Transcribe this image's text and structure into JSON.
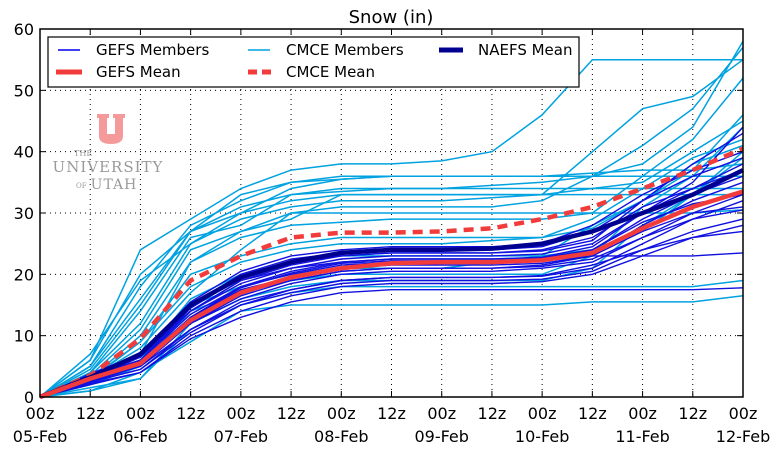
{
  "chart_data": {
    "type": "line",
    "title": "Snow (in)",
    "xlabel": "",
    "ylabel": "",
    "ylim": [
      0,
      60
    ],
    "yticks": [
      0,
      10,
      20,
      30,
      40,
      50,
      60
    ],
    "x_unit": "hours since 00z 05-Feb",
    "x": [
      0,
      12,
      24,
      36,
      48,
      60,
      72,
      84,
      96,
      108,
      120,
      132,
      144,
      156,
      168
    ],
    "xlim": [
      0,
      168
    ],
    "xtick_hours": [
      "00z",
      "12z",
      "00z",
      "12z",
      "00z",
      "12z",
      "00z",
      "12z",
      "00z",
      "12z",
      "00z",
      "12z",
      "00z",
      "12z",
      "00z"
    ],
    "xtick_dates": [
      "05-Feb",
      "",
      "06-Feb",
      "",
      "07-Feb",
      "",
      "08-Feb",
      "",
      "09-Feb",
      "",
      "10-Feb",
      "",
      "11-Feb",
      "",
      "12-Feb"
    ],
    "grid": true,
    "legend_position": "top-left",
    "legend": [
      {
        "label": "GEFS Members",
        "color": "#0000ee",
        "style": "solid-thin"
      },
      {
        "label": "GEFS Mean",
        "color": "#f23c3c",
        "style": "solid-thick"
      },
      {
        "label": "CMCE Members",
        "color": "#00a2e0",
        "style": "solid-thin"
      },
      {
        "label": "CMCE Mean",
        "color": "#f23c3c",
        "style": "dashed-thick"
      },
      {
        "label": "NAEFS Mean",
        "color": "#000090",
        "style": "solid-thick"
      }
    ],
    "series": [
      {
        "name": "GEFS Mean",
        "group": "gefs_mean",
        "values": [
          0,
          3,
          5.5,
          12.5,
          17,
          19.5,
          21,
          21.8,
          22,
          22,
          22.3,
          23.5,
          27.5,
          31,
          33.5
        ]
      },
      {
        "name": "CMCE Mean",
        "group": "cmce_mean",
        "values": [
          0,
          3.5,
          9.5,
          19,
          23,
          26,
          26.8,
          26.8,
          27,
          27.5,
          29,
          31,
          34,
          37,
          40.5
        ]
      },
      {
        "name": "NAEFS Mean",
        "group": "naefs_mean",
        "values": [
          0,
          3.2,
          7,
          15,
          19.5,
          22,
          23.5,
          24,
          24,
          24.2,
          25,
          27,
          30,
          33,
          37
        ]
      }
    ],
    "members": {
      "gefs": [
        [
          0,
          3,
          5,
          13,
          18,
          20.5,
          22,
          22.5,
          22.5,
          22.5,
          22.7,
          24,
          29,
          33,
          36
        ],
        [
          0,
          3.5,
          6,
          14,
          19,
          21,
          22.5,
          23,
          23,
          23,
          23.3,
          25,
          30,
          34,
          38
        ],
        [
          0,
          2.5,
          5,
          12,
          16,
          18.5,
          20,
          20.5,
          20.5,
          20.5,
          21,
          22,
          26,
          30,
          33
        ],
        [
          0,
          3,
          6.5,
          15,
          20,
          22.5,
          23.5,
          24,
          24,
          24,
          24.5,
          27,
          32,
          36,
          39
        ],
        [
          0,
          2.8,
          5,
          11,
          15,
          17,
          18.5,
          19,
          19,
          19,
          19.2,
          20.5,
          24,
          27,
          29
        ],
        [
          0,
          3.2,
          5.5,
          13,
          17.5,
          19.5,
          21,
          21.5,
          21.5,
          21.5,
          21.8,
          23,
          27,
          30,
          31
        ],
        [
          0,
          2,
          4,
          10,
          14,
          16.5,
          18,
          18.5,
          18.5,
          18.5,
          18.8,
          20,
          23,
          26,
          28
        ],
        [
          0,
          3.5,
          7,
          15.5,
          20.5,
          23,
          24,
          24.5,
          24.5,
          24.5,
          25,
          28,
          33,
          37,
          40
        ],
        [
          0,
          3,
          5.5,
          12.5,
          17,
          19,
          20.5,
          21,
          21,
          21,
          21.5,
          23,
          28,
          32,
          35
        ],
        [
          0,
          2.5,
          4.5,
          11,
          15.5,
          17.5,
          19,
          19.5,
          19.5,
          19.5,
          19.7,
          21,
          25,
          29,
          32
        ],
        [
          0,
          3.8,
          7,
          14,
          18.5,
          21,
          22,
          22.5,
          22.5,
          22.5,
          22.8,
          24.5,
          30,
          35,
          44
        ],
        [
          0,
          2.2,
          4,
          9.5,
          13,
          15.5,
          17,
          17.5,
          17.5,
          17.5,
          17.5,
          17.5,
          17.5,
          17.5,
          17.8
        ],
        [
          0,
          3,
          6,
          13.5,
          18,
          20,
          21.5,
          22,
          22,
          22,
          22.2,
          23,
          23,
          23,
          23.5
        ],
        [
          0,
          3.3,
          6,
          14.5,
          19.5,
          22,
          23,
          23.5,
          23.5,
          23.5,
          24,
          26,
          31,
          34,
          37
        ],
        [
          0,
          2.7,
          5,
          12,
          16.5,
          19,
          20.5,
          21,
          21,
          21,
          21.3,
          22.5,
          26,
          29,
          30.5
        ],
        [
          0,
          3.6,
          6.5,
          14,
          19,
          21.5,
          23,
          23.5,
          23.5,
          23.5,
          23.8,
          25.5,
          32,
          38,
          43
        ],
        [
          0,
          2.4,
          4.5,
          10.5,
          15,
          17.5,
          19,
          19.5,
          19.5,
          19.5,
          19.8,
          21.5,
          24,
          26,
          27
        ],
        [
          0,
          3.1,
          5.8,
          13,
          17.8,
          20.2,
          21.8,
          22.2,
          22.2,
          22.2,
          22.5,
          24,
          28.5,
          31.5,
          33
        ]
      ],
      "cmce": [
        [
          0,
          7,
          19,
          25,
          30,
          34,
          35.5,
          36,
          36,
          36,
          36,
          36,
          36,
          36,
          36
        ],
        [
          0,
          4,
          12,
          25,
          29,
          31,
          32,
          32,
          32,
          32.5,
          33,
          40,
          47,
          49,
          55
        ],
        [
          0,
          3,
          8,
          17,
          24,
          30,
          30,
          30,
          30,
          30,
          30,
          30,
          30,
          30,
          30.5
        ],
        [
          0,
          5,
          16,
          27,
          31,
          33,
          34,
          34,
          34,
          34.5,
          35,
          36,
          38,
          44,
          58
        ],
        [
          0,
          2,
          7,
          22,
          27,
          29,
          33,
          33,
          33,
          33,
          33,
          34,
          35,
          40,
          45
        ],
        [
          0,
          1,
          4,
          9,
          14,
          15,
          15,
          15,
          15,
          15,
          15,
          15.5,
          15.5,
          15.5,
          16.5
        ],
        [
          0,
          2.5,
          6,
          15,
          18,
          20,
          21,
          21,
          21,
          22,
          23,
          28,
          32,
          37,
          46
        ],
        [
          0,
          6,
          24,
          29,
          34,
          37,
          38,
          38,
          38.5,
          40,
          46,
          55,
          55,
          55,
          55
        ],
        [
          0,
          4,
          14,
          26,
          28,
          33,
          33.5,
          34,
          34,
          34,
          34,
          34,
          34,
          34,
          34
        ],
        [
          0,
          3,
          10,
          22,
          26,
          28,
          28.5,
          29,
          29,
          29,
          29,
          30,
          36,
          42,
          52
        ],
        [
          0,
          1.5,
          3,
          11,
          15,
          17,
          18,
          18,
          18,
          18,
          18,
          18,
          18,
          18,
          19
        ],
        [
          0,
          5,
          18,
          28,
          32,
          35,
          36,
          36,
          36,
          36,
          36,
          36.5,
          37,
          37,
          38
        ],
        [
          0,
          2,
          5,
          14,
          17,
          19,
          20,
          20,
          20,
          20,
          20,
          23,
          31,
          36,
          44
        ],
        [
          0,
          3.5,
          11,
          24,
          27,
          30,
          31,
          31,
          31,
          31,
          32,
          36,
          41,
          47,
          57
        ],
        [
          0,
          2.8,
          9,
          18,
          22,
          24,
          25,
          25,
          25,
          25.5,
          26,
          29,
          34,
          39,
          42
        ],
        [
          0,
          4.5,
          15,
          27,
          30,
          32,
          33,
          33,
          33,
          33,
          33,
          33,
          33,
          33,
          33
        ],
        [
          0,
          1,
          3,
          12,
          16,
          18,
          19,
          19,
          19,
          19,
          19,
          21,
          28,
          33,
          40
        ],
        [
          0,
          3,
          9,
          20,
          23,
          25,
          26,
          26,
          26,
          26,
          26,
          27.5,
          32,
          38,
          41
        ],
        [
          0,
          6,
          20,
          27,
          33,
          35,
          35.5,
          36,
          36,
          36,
          36,
          36,
          36,
          36,
          36
        ],
        [
          0,
          2,
          6,
          16,
          20,
          22,
          23,
          23,
          23,
          23,
          23,
          24,
          27,
          33,
          39
        ]
      ]
    }
  },
  "logo": {
    "line1": "THE",
    "line2": "UNIVERSITY",
    "line3_prefix": "OF",
    "line3": "UTAH",
    "color": "#f59a9a"
  }
}
